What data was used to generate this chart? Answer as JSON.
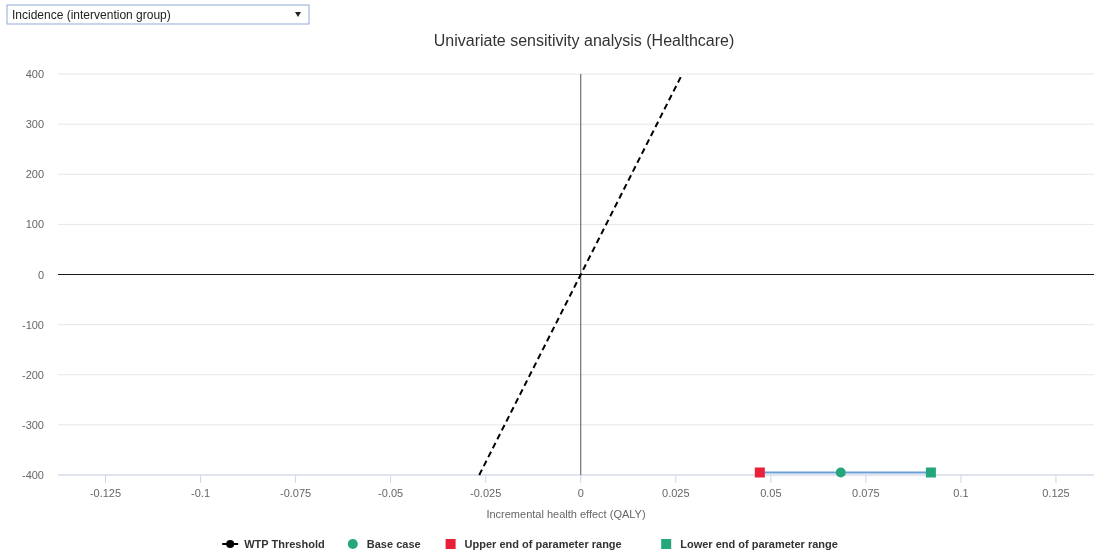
{
  "chart_data": {
    "type": "scatter",
    "title": "Univariate sensitivity analysis (Healthcare)",
    "xlabel": "Incremental health effect (QALY)",
    "annotations": [
      "Incidence (intervention group)"
    ],
    "xlim": [
      -0.1375,
      0.135
    ],
    "xticks": [
      -0.125,
      -0.1,
      -0.075,
      -0.05,
      -0.025,
      0,
      0.025,
      0.05,
      0.075,
      0.1,
      0.125
    ],
    "ylim": [
      -400,
      400
    ],
    "yticks": [
      -400,
      -300,
      -200,
      -100,
      0,
      100,
      200,
      300,
      400
    ],
    "grid": "y",
    "legend": "bottom",
    "ref_lines": [
      {
        "axis": "x",
        "value": 0,
        "color": "#555555"
      },
      {
        "axis": "y",
        "value": 0,
        "color": "#1a1a1a"
      }
    ],
    "series": [
      {
        "name": "WTP Threshold",
        "type": "line",
        "color": "#000000",
        "line_style": "dashed",
        "marker": "none",
        "x": [
          -0.0267,
          0.0267
        ],
        "values": [
          -400,
          400
        ]
      },
      {
        "type": "line",
        "color": "#6a9fd4",
        "line_style": "solid",
        "marker": "none",
        "x": [
          0.0471,
          0.0921
        ],
        "values": [
          -395,
          -395
        ]
      },
      {
        "name": "Base case",
        "type": "scatter",
        "color": "#26a67c",
        "marker": "circle",
        "x": [
          0.0684
        ],
        "values": [
          -395
        ]
      },
      {
        "name": "Upper end of parameter range",
        "type": "scatter",
        "color": "#e8203a",
        "marker": "square",
        "x": [
          0.0471
        ],
        "values": [
          -395
        ]
      },
      {
        "name": "Lower end of parameter range",
        "type": "scatter",
        "color": "#26a67c",
        "marker": "square",
        "x": [
          0.0921
        ],
        "values": [
          -395
        ]
      }
    ]
  }
}
